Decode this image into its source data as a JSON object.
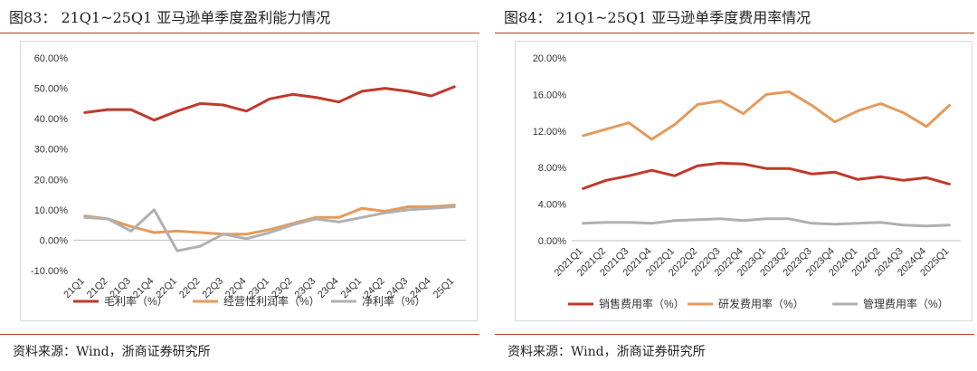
{
  "figures": [
    {
      "title": "图83： 21Q1~25Q1 亚马逊单季度盈利能力情况",
      "source": "资料来源：Wind，浙商证券研究所"
    },
    {
      "title": "图84： 21Q1~25Q1 亚马逊单季度费用率情况",
      "source": "资料来源：Wind，浙商证券研究所"
    }
  ],
  "chart_data": [
    {
      "type": "line",
      "title": "",
      "xlabel": "",
      "ylabel": "",
      "categories": [
        "21Q1",
        "21Q2",
        "21Q3",
        "21Q4",
        "22Q1",
        "22Q2",
        "22Q3",
        "22Q4",
        "23Q1",
        "23Q2",
        "23Q3",
        "23Q4",
        "24Q1",
        "24Q2",
        "24Q3",
        "24Q4",
        "25Q1"
      ],
      "yticks": [
        "-10.00%",
        "0.00%",
        "10.00%",
        "20.00%",
        "30.00%",
        "40.00%",
        "50.00%",
        "60.00%"
      ],
      "ylim": [
        -10,
        60
      ],
      "grid": false,
      "legend": "bottom",
      "series": [
        {
          "name": "毛利率（%）",
          "color": "#c0392b",
          "values": [
            42.0,
            43.0,
            43.0,
            39.5,
            42.5,
            45.0,
            44.5,
            42.5,
            46.5,
            48.0,
            47.0,
            45.5,
            49.0,
            50.0,
            49.0,
            47.5,
            50.5
          ]
        },
        {
          "name": "经营性利润率（%）",
          "color": "#e59a5b",
          "values": [
            8.0,
            7.0,
            4.5,
            2.5,
            3.0,
            2.5,
            2.0,
            2.0,
            3.5,
            5.5,
            7.5,
            7.5,
            10.5,
            9.5,
            11.0,
            11.0,
            11.5
          ]
        },
        {
          "name": "净利率（%）",
          "color": "#b0b0b0",
          "values": [
            7.5,
            7.0,
            3.0,
            10.0,
            -3.5,
            -2.0,
            2.0,
            0.5,
            2.5,
            5.0,
            7.0,
            6.0,
            7.5,
            9.0,
            10.0,
            10.5,
            11.0
          ]
        }
      ]
    },
    {
      "type": "line",
      "title": "",
      "xlabel": "",
      "ylabel": "",
      "categories": [
        "2021Q1",
        "2021Q2",
        "2021Q3",
        "2021Q4",
        "2022Q1",
        "2022Q2",
        "2022Q3",
        "2022Q4",
        "2023Q1",
        "2023Q2",
        "2023Q3",
        "2023Q4",
        "2024Q1",
        "2024Q2",
        "2024Q3",
        "2024Q4",
        "2025Q1"
      ],
      "yticks": [
        "0.00%",
        "4.00%",
        "8.00%",
        "12.00%",
        "16.00%",
        "20.00%"
      ],
      "ylim": [
        0,
        20
      ],
      "grid": false,
      "legend": "bottom",
      "series": [
        {
          "name": "销售费用率（%）",
          "color": "#c0392b",
          "values": [
            5.7,
            6.6,
            7.1,
            7.7,
            7.1,
            8.2,
            8.5,
            8.4,
            7.9,
            7.9,
            7.3,
            7.5,
            6.7,
            7.0,
            6.6,
            6.9,
            6.2
          ]
        },
        {
          "name": "研发费用率（%）",
          "color": "#e59a5b",
          "values": [
            11.5,
            12.2,
            12.9,
            11.1,
            12.7,
            14.9,
            15.3,
            13.9,
            16.0,
            16.3,
            14.8,
            13.0,
            14.2,
            15.0,
            14.0,
            12.5,
            14.8
          ]
        },
        {
          "name": "管理费用率（%）",
          "color": "#b0b0b0",
          "values": [
            1.9,
            2.0,
            2.0,
            1.9,
            2.2,
            2.3,
            2.4,
            2.2,
            2.4,
            2.4,
            1.9,
            1.8,
            1.9,
            2.0,
            1.7,
            1.6,
            1.7
          ]
        }
      ]
    }
  ]
}
